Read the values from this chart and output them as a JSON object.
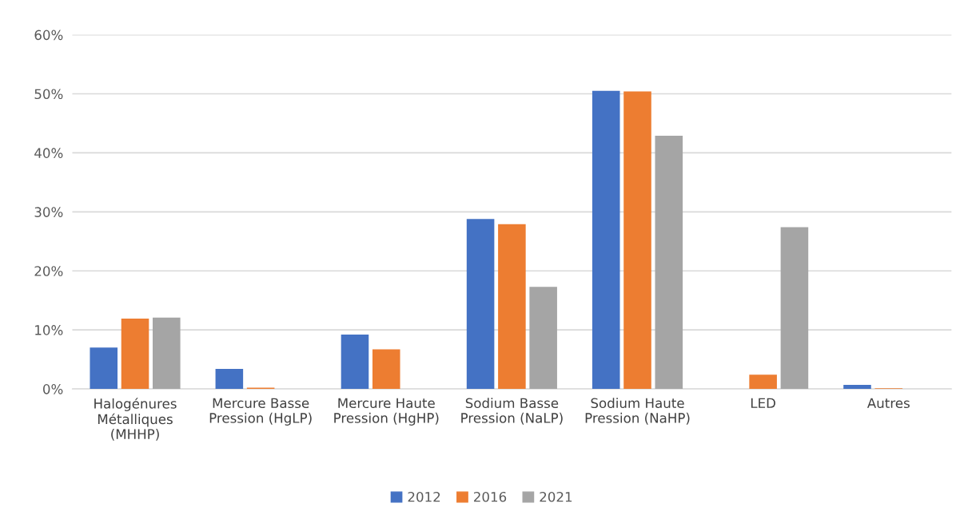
{
  "chart_data": {
    "type": "bar",
    "categories": [
      "Halogénures\nMétalliques\n(MHHP)",
      "Mercure Basse\nPression (HgLP)",
      "Mercure Haute\nPression (HgHP)",
      "Sodium Basse\nPression (NaLP)",
      "Sodium Haute\nPression (NaHP)",
      "LED",
      "Autres"
    ],
    "series": [
      {
        "name": "2012",
        "color": "#4472c4",
        "values": [
          7.0,
          3.4,
          9.2,
          28.8,
          50.5,
          0,
          0.7
        ]
      },
      {
        "name": "2016",
        "color": "#ed7d31",
        "values": [
          11.9,
          0.2,
          6.7,
          27.9,
          50.4,
          2.4,
          0.1
        ]
      },
      {
        "name": "2021",
        "color": "#a5a5a5",
        "values": [
          12.1,
          0,
          0,
          17.3,
          42.9,
          27.4,
          0
        ]
      }
    ],
    "ylim": [
      0,
      60
    ],
    "yticks": [
      {
        "value": 0,
        "label": "0%"
      },
      {
        "value": 10,
        "label": "10%"
      },
      {
        "value": 20,
        "label": "20%"
      },
      {
        "value": 30,
        "label": "30%"
      },
      {
        "value": 40,
        "label": "40%"
      },
      {
        "value": 50,
        "label": "50%"
      },
      {
        "value": 60,
        "label": "60%"
      }
    ],
    "grid": "y",
    "legend": "bottom"
  }
}
